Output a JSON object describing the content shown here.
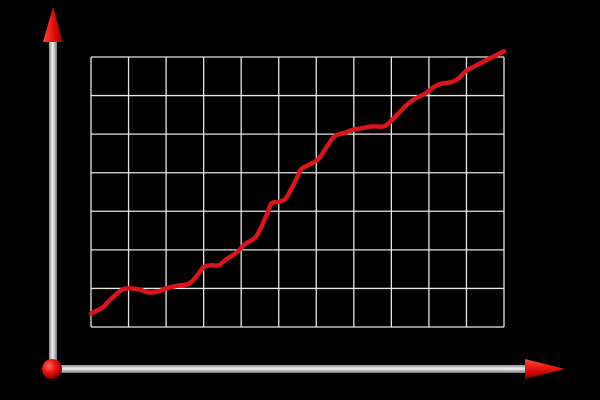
{
  "colors": {
    "background": "#000000",
    "grid": "#e6e6e6",
    "line": "#d9161c",
    "axis_rod": "#d8d8d8",
    "axis_arrow": "#e3110f",
    "origin_ball": "#e3110f"
  },
  "chart_data": {
    "type": "line",
    "title": "",
    "xlabel": "",
    "ylabel": "",
    "grid": true,
    "legend": "none",
    "xlim": [
      0,
      11
    ],
    "ylim": [
      0,
      7
    ],
    "x": [
      0,
      0.3,
      0.5,
      0.8,
      1.0,
      1.3,
      1.5,
      1.8,
      2.0,
      2.3,
      2.6,
      2.8,
      3.0,
      3.2,
      3.4,
      3.6,
      3.9,
      4.1,
      4.4,
      4.7,
      4.8,
      5.0,
      5.2,
      5.5,
      5.6,
      5.9,
      6.1,
      6.3,
      6.5,
      6.8,
      7.0,
      7.2,
      7.5,
      7.8,
      8.0,
      8.2,
      8.4,
      8.6,
      8.9,
      9.1,
      9.3,
      9.6,
      9.8,
      10.0,
      10.2,
      10.4,
      10.6,
      10.8,
      11.0
    ],
    "values": [
      0.35,
      0.5,
      0.7,
      0.95,
      1.0,
      0.97,
      0.9,
      0.92,
      1.0,
      1.07,
      1.12,
      1.3,
      1.55,
      1.6,
      1.6,
      1.75,
      1.95,
      2.15,
      2.35,
      2.95,
      3.2,
      3.25,
      3.35,
      3.9,
      4.1,
      4.25,
      4.4,
      4.7,
      4.95,
      5.05,
      5.12,
      5.15,
      5.2,
      5.2,
      5.35,
      5.55,
      5.75,
      5.9,
      6.05,
      6.2,
      6.3,
      6.35,
      6.45,
      6.65,
      6.75,
      6.85,
      6.95,
      7.05,
      7.15
    ]
  }
}
